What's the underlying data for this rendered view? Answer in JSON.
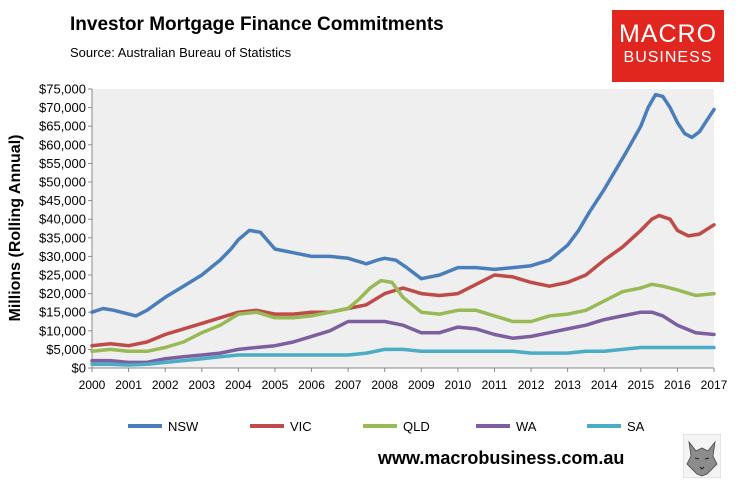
{
  "header": {
    "title": "Investor Mortgage Finance Commitments",
    "subtitle": "Source: Australian Bureau of Statistics"
  },
  "logo": {
    "line1": "MACRO",
    "line2": "BUSINESS"
  },
  "footer": {
    "url": "www.macrobusiness.com.au"
  },
  "chart_data": {
    "type": "line",
    "title": "Investor Mortgage Finance Commitments",
    "xlabel": "",
    "ylabel": "Millions (Rolling Annual)",
    "xlim": [
      2000,
      2017
    ],
    "ylim": [
      0,
      75000
    ],
    "x_ticks": [
      "2000",
      "2001",
      "2002",
      "2003",
      "2004",
      "2005",
      "2006",
      "2007",
      "2008",
      "2009",
      "2010",
      "2011",
      "2012",
      "2013",
      "2014",
      "2015",
      "2016",
      "2017"
    ],
    "y_ticks": [
      "$0",
      "$5,000",
      "$10,000",
      "$15,000",
      "$20,000",
      "$25,000",
      "$30,000",
      "$35,000",
      "$40,000",
      "$45,000",
      "$50,000",
      "$55,000",
      "$60,000",
      "$65,000",
      "$70,000",
      "$75,000"
    ],
    "grid": false,
    "legend_position": "bottom",
    "series": [
      {
        "name": "NSW",
        "color": "#4a7ebb",
        "x": [
          2000,
          2000.3,
          2000.6,
          2001,
          2001.2,
          2001.5,
          2002,
          2002.5,
          2003,
          2003.5,
          2003.8,
          2004,
          2004.3,
          2004.6,
          2005,
          2005.5,
          2006,
          2006.5,
          2007,
          2007.5,
          2007.8,
          2008,
          2008.3,
          2008.6,
          2009,
          2009.5,
          2010,
          2010.5,
          2011,
          2011.5,
          2012,
          2012.5,
          2013,
          2013.3,
          2013.6,
          2014,
          2014.3,
          2014.6,
          2015,
          2015.2,
          2015.4,
          2015.6,
          2015.8,
          2016,
          2016.2,
          2016.4,
          2016.6,
          2016.8,
          2017
        ],
        "values": [
          15000,
          16000,
          15500,
          14500,
          14000,
          15500,
          19000,
          22000,
          25000,
          29000,
          32000,
          34500,
          37000,
          36500,
          32000,
          31000,
          30000,
          30000,
          29500,
          28000,
          29000,
          29500,
          29000,
          27000,
          24000,
          25000,
          27000,
          27000,
          26500,
          27000,
          27500,
          29000,
          33000,
          37000,
          42000,
          48000,
          53000,
          58000,
          65000,
          70000,
          73500,
          73000,
          70000,
          66000,
          63000,
          62000,
          63500,
          66500,
          69500
        ]
      },
      {
        "name": "VIC",
        "color": "#be4b48",
        "x": [
          2000,
          2000.5,
          2001,
          2001.5,
          2002,
          2002.5,
          2003,
          2003.5,
          2004,
          2004.5,
          2005,
          2005.5,
          2006,
          2006.5,
          2007,
          2007.5,
          2008,
          2008.5,
          2009,
          2009.5,
          2010,
          2010.5,
          2011,
          2011.5,
          2012,
          2012.5,
          2013,
          2013.5,
          2014,
          2014.5,
          2015,
          2015.3,
          2015.5,
          2015.8,
          2016,
          2016.3,
          2016.6,
          2017
        ],
        "values": [
          6000,
          6500,
          6000,
          7000,
          9000,
          10500,
          12000,
          13500,
          15000,
          15500,
          14500,
          14500,
          15000,
          15000,
          16000,
          17000,
          20000,
          21500,
          20000,
          19500,
          20000,
          22500,
          25000,
          24500,
          23000,
          22000,
          23000,
          25000,
          29000,
          32500,
          37000,
          40000,
          41000,
          40000,
          37000,
          35500,
          36000,
          38500
        ]
      },
      {
        "name": "QLD",
        "color": "#98b954",
        "x": [
          2000,
          2000.5,
          2001,
          2001.5,
          2002,
          2002.5,
          2003,
          2003.5,
          2004,
          2004.5,
          2005,
          2005.5,
          2006,
          2006.5,
          2007,
          2007.3,
          2007.6,
          2007.9,
          2008.2,
          2008.5,
          2009,
          2009.5,
          2010,
          2010.5,
          2011,
          2011.5,
          2012,
          2012.5,
          2013,
          2013.5,
          2014,
          2014.5,
          2015,
          2015.3,
          2015.6,
          2016,
          2016.5,
          2017
        ],
        "values": [
          4500,
          5000,
          4500,
          4500,
          5500,
          7000,
          9500,
          11500,
          14500,
          15000,
          13500,
          13500,
          14000,
          15000,
          16000,
          18500,
          21500,
          23500,
          23000,
          19000,
          15000,
          14500,
          15500,
          15500,
          14000,
          12500,
          12500,
          14000,
          14500,
          15500,
          18000,
          20500,
          21500,
          22500,
          22000,
          21000,
          19500,
          20000
        ]
      },
      {
        "name": "WA",
        "color": "#7d5fa0",
        "x": [
          2000,
          2000.5,
          2001,
          2001.5,
          2002,
          2002.5,
          2003,
          2003.5,
          2004,
          2004.5,
          2005,
          2005.5,
          2006,
          2006.5,
          2007,
          2007.5,
          2008,
          2008.5,
          2009,
          2009.5,
          2010,
          2010.5,
          2011,
          2011.5,
          2012,
          2012.5,
          2013,
          2013.5,
          2014,
          2014.5,
          2015,
          2015.3,
          2015.6,
          2016,
          2016.5,
          2017
        ],
        "values": [
          2000,
          2000,
          1500,
          1500,
          2500,
          3000,
          3500,
          4000,
          5000,
          5500,
          6000,
          7000,
          8500,
          10000,
          12500,
          12500,
          12500,
          11500,
          9500,
          9500,
          11000,
          10500,
          9000,
          8000,
          8500,
          9500,
          10500,
          11500,
          13000,
          14000,
          15000,
          15000,
          14000,
          11500,
          9500,
          9000
        ]
      },
      {
        "name": "SA",
        "color": "#4aacc5",
        "x": [
          2000,
          2000.5,
          2001,
          2001.5,
          2002,
          2002.5,
          2003,
          2003.5,
          2004,
          2004.5,
          2005,
          2005.5,
          2006,
          2006.5,
          2007,
          2007.5,
          2008,
          2008.5,
          2009,
          2009.5,
          2010,
          2010.5,
          2011,
          2011.5,
          2012,
          2012.5,
          2013,
          2013.5,
          2014,
          2014.5,
          2015,
          2015.5,
          2016,
          2016.5,
          2017
        ],
        "values": [
          1000,
          1000,
          800,
          1000,
          1500,
          2000,
          2500,
          3000,
          3500,
          3500,
          3500,
          3500,
          3500,
          3500,
          3500,
          4000,
          5000,
          5000,
          4500,
          4500,
          4500,
          4500,
          4500,
          4500,
          4000,
          4000,
          4000,
          4500,
          4500,
          5000,
          5500,
          5500,
          5500,
          5500,
          5500
        ]
      }
    ]
  }
}
